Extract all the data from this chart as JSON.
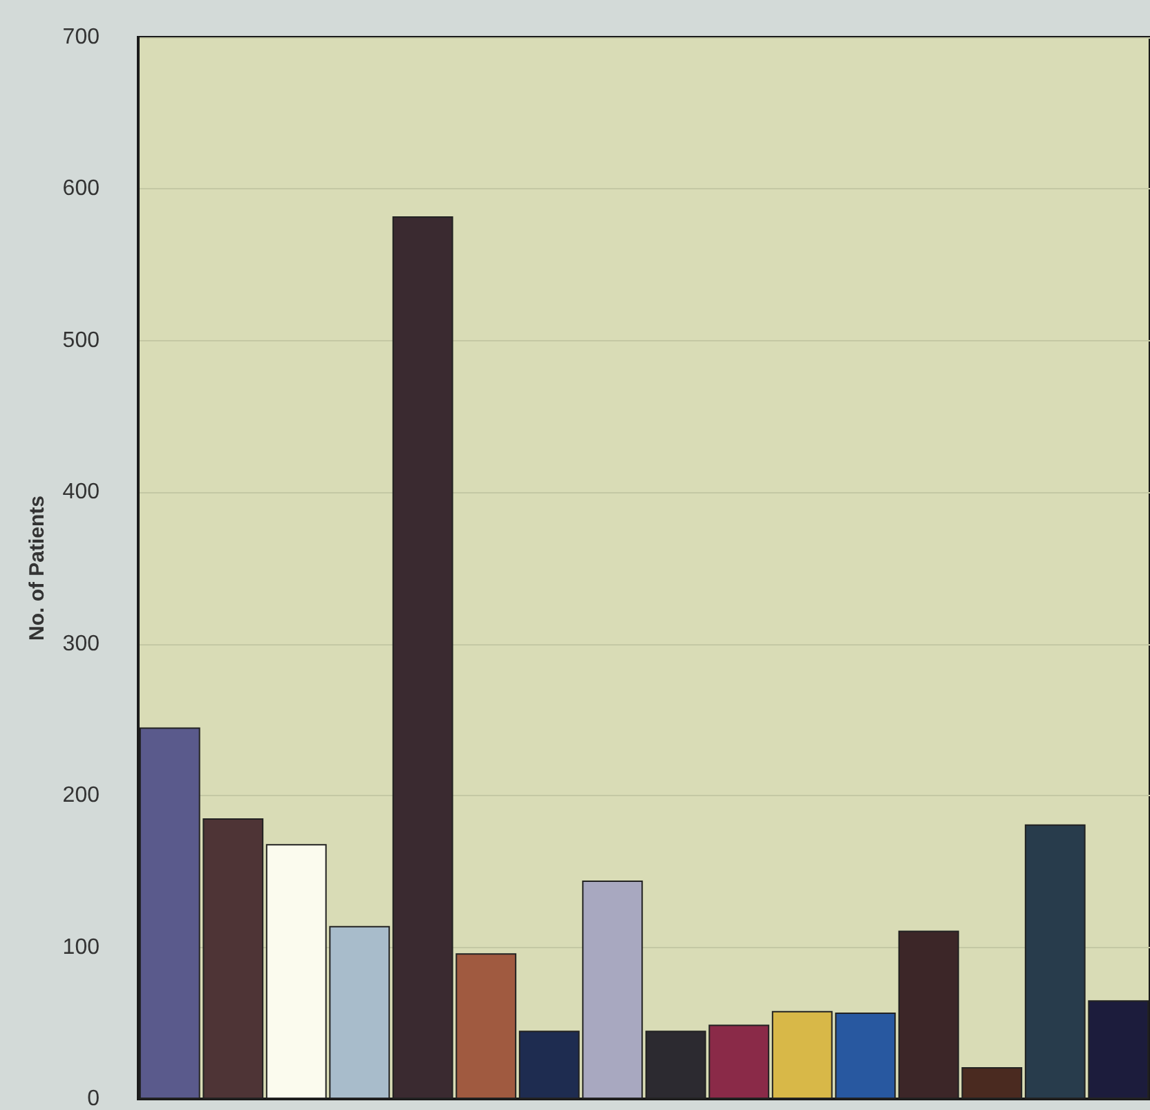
{
  "chart_data": {
    "type": "bar",
    "ylabel": "No. of Patients",
    "categories": [
      null,
      null,
      null,
      null,
      null,
      null,
      null,
      null,
      null,
      null,
      null,
      null,
      null,
      null,
      null,
      null
    ],
    "values": [
      245,
      185,
      168,
      114,
      582,
      96,
      45,
      144,
      45,
      49,
      58,
      57,
      111,
      21,
      181,
      65
    ],
    "colors": [
      "#5a5a8c",
      "#4e3436",
      "#fbfbee",
      "#a8bccb",
      "#3a2a30",
      "#a05a40",
      "#1e2c50",
      "#a8a8c0",
      "#2c2a30",
      "#8a2a48",
      "#d8b848",
      "#2858a0",
      "#3c2628",
      "#4a2a20",
      "#283c4c",
      "#1c1c3c"
    ],
    "ylim": [
      0,
      700
    ],
    "yticks": [
      0,
      100,
      200,
      300,
      400,
      500,
      600,
      700
    ],
    "grid": "y"
  }
}
